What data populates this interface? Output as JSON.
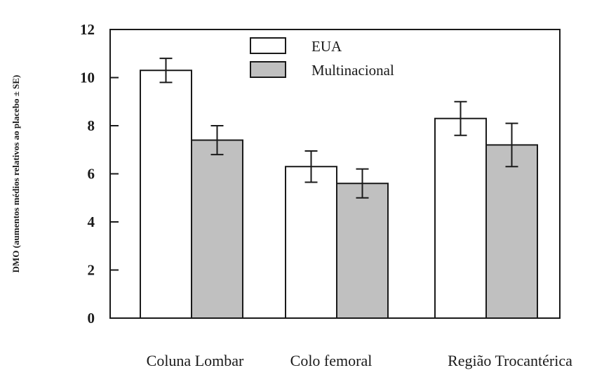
{
  "chart_data": {
    "type": "bar",
    "title": "",
    "xlabel": "",
    "ylabel": "DMO (aumentos médios relativos ao placebo ± SE)",
    "ylim": [
      0,
      12
    ],
    "yticks": [
      0,
      2,
      4,
      6,
      8,
      10,
      12
    ],
    "categories": [
      "Coluna Lombar",
      "Colo femoral",
      "Região Trocantérica"
    ],
    "series": [
      {
        "name": "EUA",
        "color": "#ffffff",
        "values": [
          10.3,
          6.3,
          8.3
        ],
        "errors": [
          0.5,
          0.65,
          0.7
        ]
      },
      {
        "name": "Multinacional",
        "color": "#c0c0c0",
        "values": [
          7.4,
          5.6,
          7.2
        ],
        "errors": [
          0.6,
          0.6,
          0.9
        ]
      }
    ],
    "legend": "top-center",
    "grid": false
  }
}
